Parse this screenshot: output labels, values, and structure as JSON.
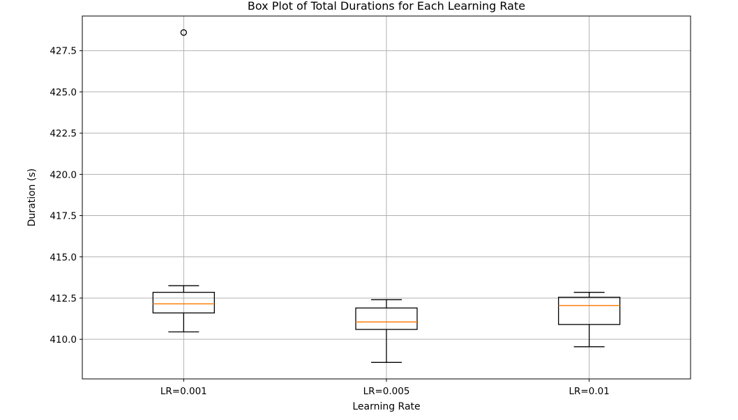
{
  "chart_data": {
    "type": "box",
    "title": "Box Plot of Total Durations for Each Learning Rate",
    "xlabel": "Learning Rate",
    "ylabel": "Duration (s)",
    "categories": [
      "LR=0.001",
      "LR=0.005",
      "LR=0.01"
    ],
    "ylim": [
      407.6,
      429.6
    ],
    "yticks": [
      410.0,
      412.5,
      415.0,
      417.5,
      420.0,
      422.5,
      425.0,
      427.5
    ],
    "ytick_labels": [
      "410.0",
      "412.5",
      "415.0",
      "417.5",
      "420.0",
      "422.5",
      "425.0",
      "427.5"
    ],
    "grid": true,
    "boxes": [
      {
        "category": "LR=0.001",
        "whisker_low": 410.45,
        "q1": 411.6,
        "median": 412.15,
        "q3": 412.85,
        "whisker_high": 413.25,
        "outliers": [
          428.6
        ]
      },
      {
        "category": "LR=0.005",
        "whisker_low": 408.6,
        "q1": 410.6,
        "median": 411.05,
        "q3": 411.9,
        "whisker_high": 412.4,
        "outliers": []
      },
      {
        "category": "LR=0.01",
        "whisker_low": 409.55,
        "q1": 410.9,
        "median": 412.05,
        "q3": 412.55,
        "whisker_high": 412.85,
        "outliers": []
      }
    ],
    "colors": {
      "box": "#000000",
      "median": "#ff7f0e",
      "grid": "#b0b0b0",
      "axes": "#000000"
    }
  }
}
